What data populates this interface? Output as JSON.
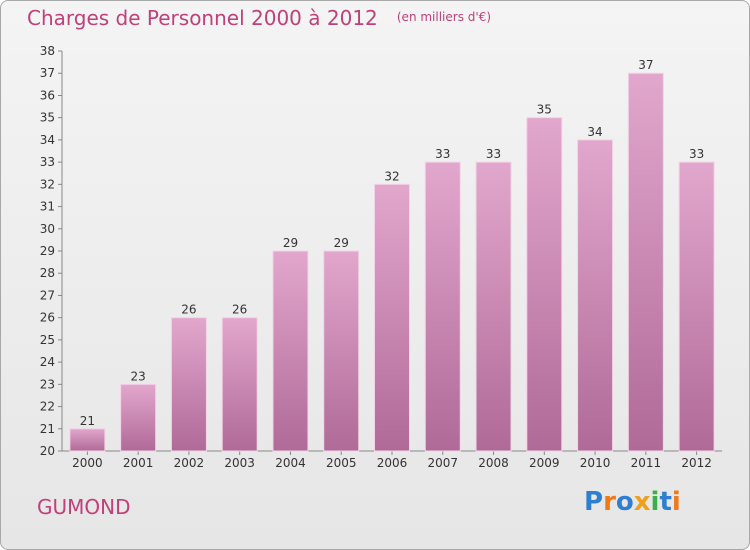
{
  "header": {
    "title": "Charges de Personnel 2000 à 2012",
    "unit": "(en milliers d'€)"
  },
  "footer": {
    "commune": "GUMOND",
    "logo": "Proxiti"
  },
  "colors": {
    "title": "#c0407a",
    "bar_top": "#e2a7cd",
    "bar_bottom": "#b06a98",
    "logo_letters": [
      "#2e7fd1",
      "#f07a1a",
      "#2e7fd1",
      "#f0a01a",
      "#3ab04a",
      "#2e7fd1",
      "#f07a1a"
    ]
  },
  "chart_data": {
    "type": "bar",
    "title": "Charges de Personnel 2000 à 2012",
    "categories": [
      "2000",
      "2001",
      "2002",
      "2003",
      "2004",
      "2005",
      "2006",
      "2007",
      "2008",
      "2009",
      "2010",
      "2011",
      "2012"
    ],
    "values": [
      21,
      23,
      26,
      26,
      29,
      29,
      32,
      33,
      33,
      35,
      34,
      37,
      33
    ],
    "ylim": [
      20,
      38
    ],
    "yticks": [
      20,
      21,
      22,
      23,
      24,
      25,
      26,
      27,
      28,
      29,
      30,
      31,
      32,
      33,
      34,
      35,
      36,
      37,
      38
    ],
    "xlabel": "",
    "ylabel": "",
    "grid": false
  }
}
